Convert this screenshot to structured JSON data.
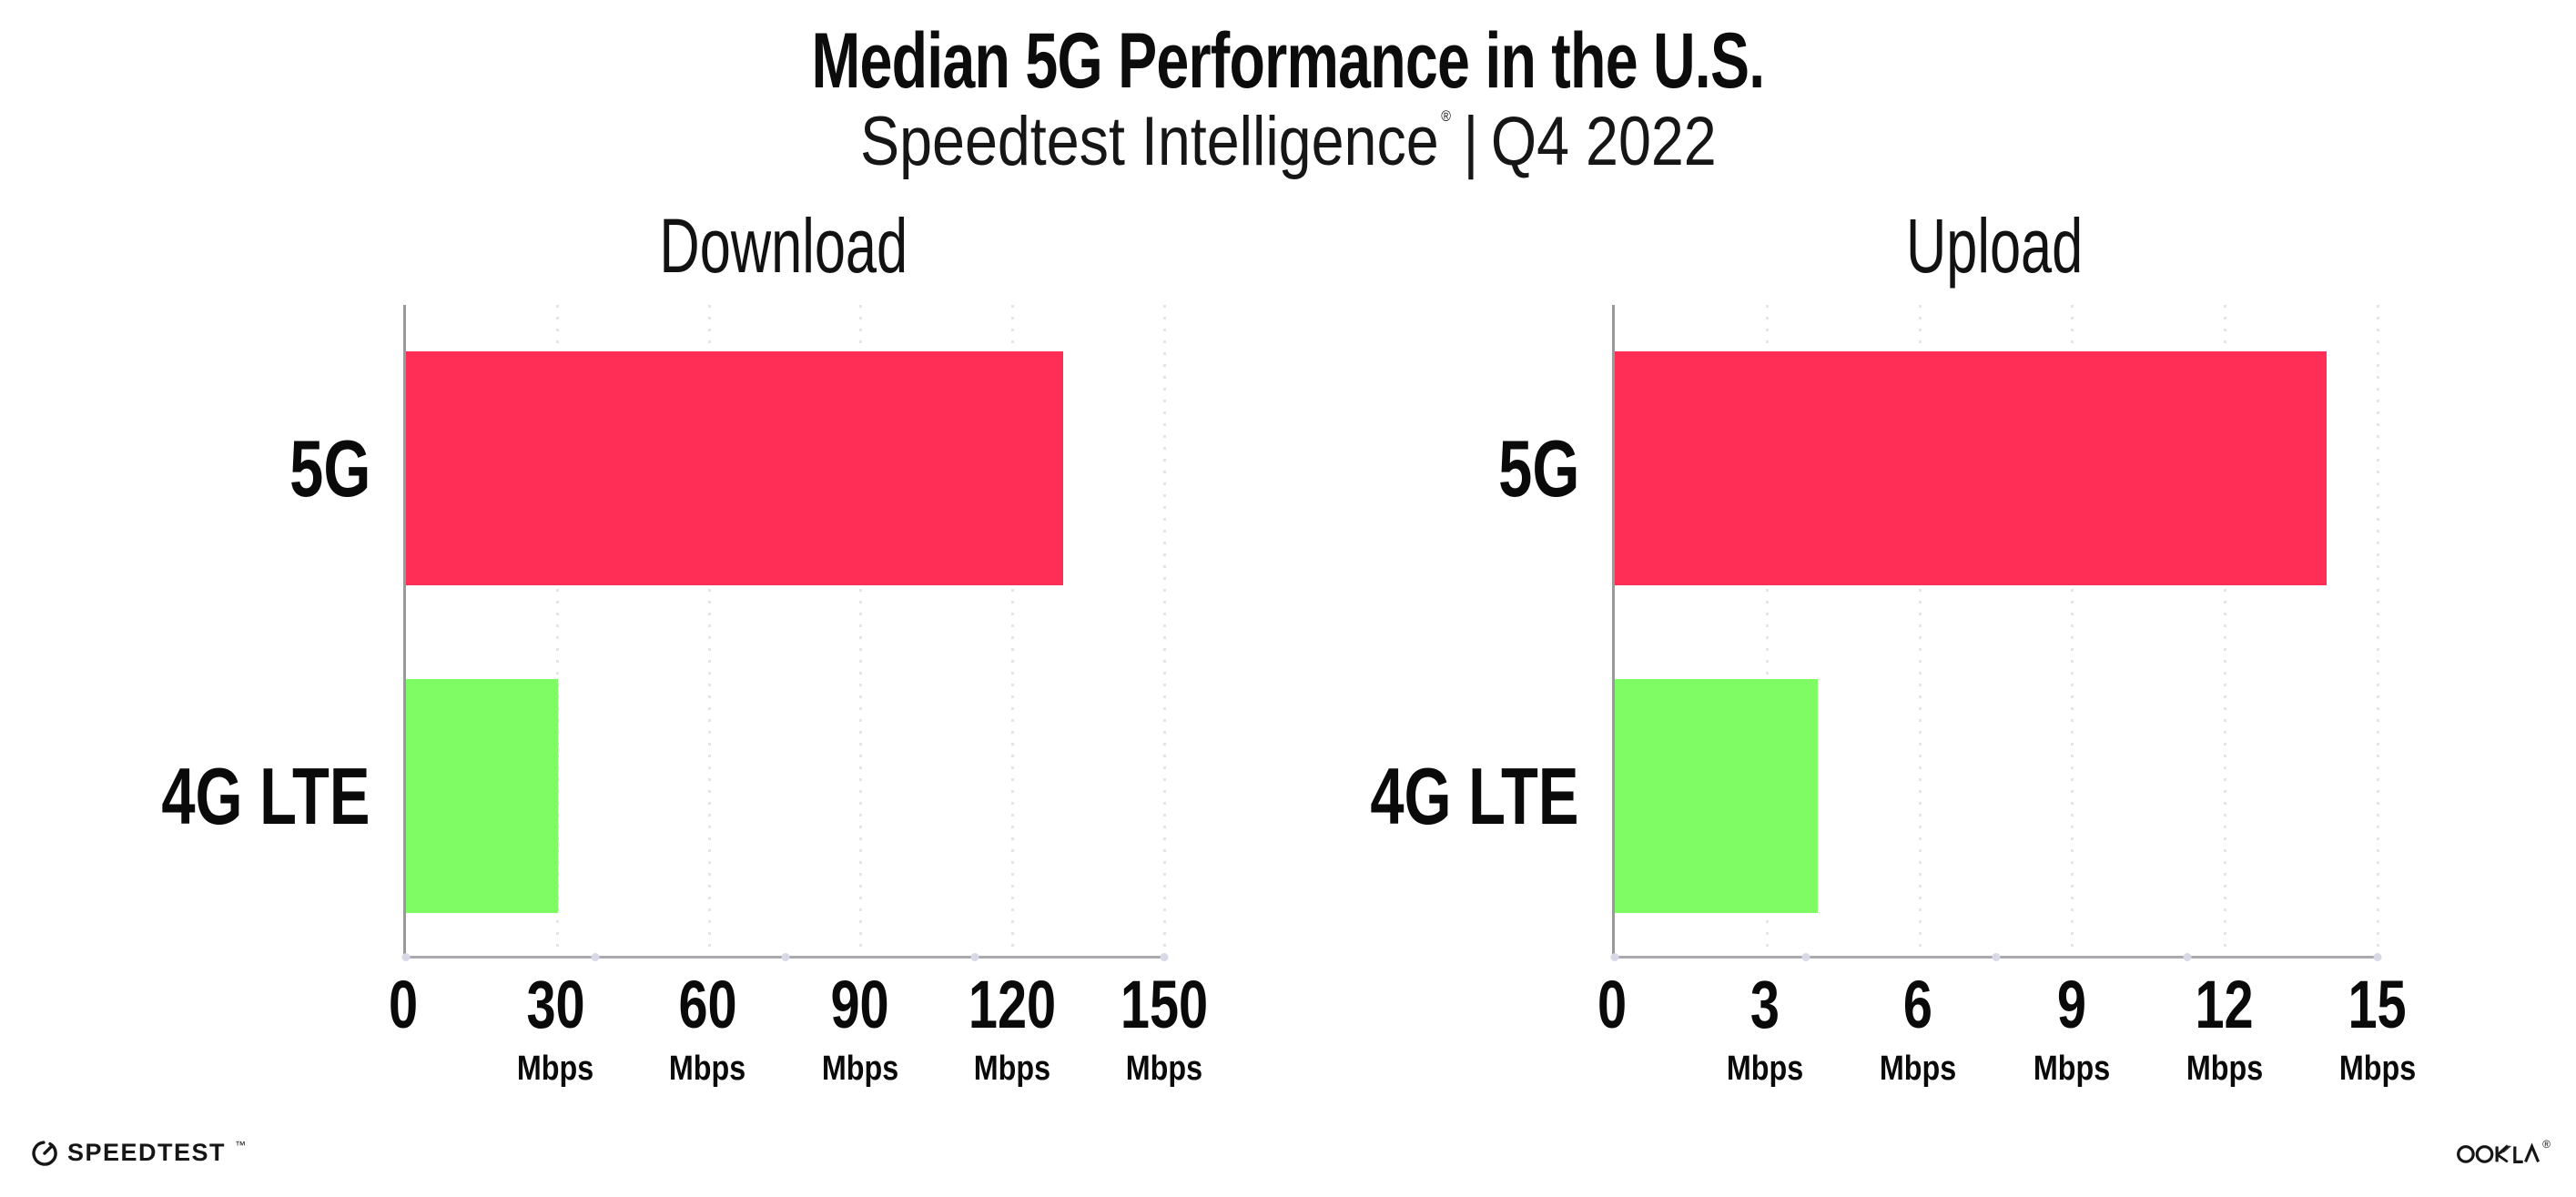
{
  "header": {
    "title": "Median 5G Performance in the U.S.",
    "subtitle": {
      "brand": "Speedtest Intelligence",
      "registered": "®",
      "divider": "|",
      "period": "Q4 2022"
    }
  },
  "chart_data": [
    {
      "type": "bar",
      "orientation": "horizontal",
      "title": "Download",
      "categories": [
        "5G",
        "4G LTE"
      ],
      "values": [
        130,
        30
      ],
      "unit": "Mbps",
      "xlim": [
        0,
        150
      ],
      "xticks": [
        0,
        30,
        60,
        90,
        120,
        150
      ],
      "grid": "dotted-vertical-at-ticks",
      "legend": false,
      "bar_colors": {
        "5G": "#FF2E56",
        "4G LTE": "#7FFB64"
      }
    },
    {
      "type": "bar",
      "orientation": "horizontal",
      "title": "Upload",
      "categories": [
        "5G",
        "4G LTE"
      ],
      "values": [
        14,
        4
      ],
      "unit": "Mbps",
      "xlim": [
        0,
        15
      ],
      "xticks": [
        0,
        3,
        6,
        9,
        12,
        15
      ],
      "grid": "dotted-vertical-at-ticks",
      "legend": false,
      "bar_colors": {
        "5G": "#FF2E56",
        "4G LTE": "#7FFB64"
      }
    }
  ],
  "colors": {
    "bar_5g": "#FF2E56",
    "bar_4g_lte": "#7FFB64",
    "axis_line": "#9b9ba0",
    "grid_dots": "#e4e4ed",
    "axis_quarter_dots": "#d6d9e6",
    "text": "#0f0f0f",
    "background": "#ffffff"
  },
  "footer": {
    "speedtest": {
      "label": "SPEEDTEST",
      "mark": "™",
      "icon": "speedtest-gauge-icon"
    },
    "ookla": {
      "label": "OOKLA",
      "mark": "®",
      "icon": "ookla-wordmark"
    }
  }
}
